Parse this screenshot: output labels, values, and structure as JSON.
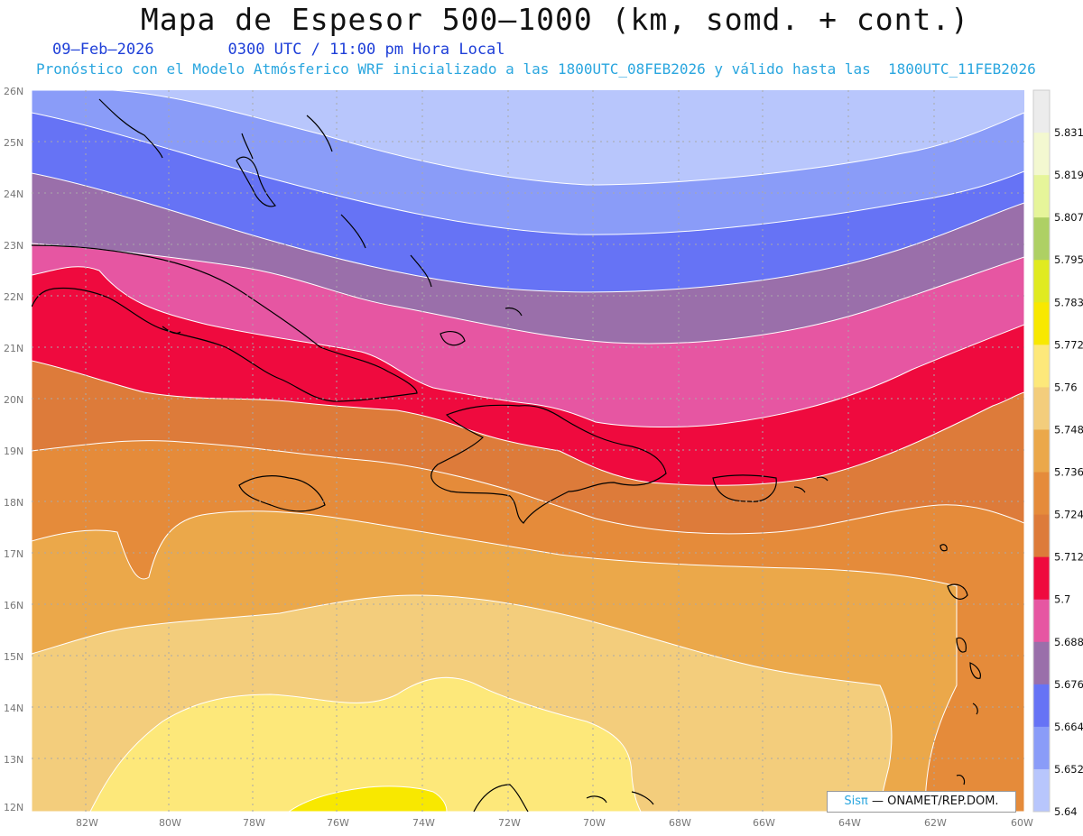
{
  "title": "Mapa de Espesor 500—1000 (km, somd. + cont.)",
  "date": "09—Feb—2026",
  "time": "0300 UTC / 11:00 pm Hora Local",
  "forecast": "Pronóstico con el Modelo Atmósferico WRF inicializado a las 1800UTC_08FEB2026 y válido hasta las  1800UTC_11FEB2026",
  "credit_brand": "Sisπ",
  "credit_text": "— ONAMET/REP.DOM.",
  "lat_labels": [
    "26N",
    "25N",
    "24N",
    "23N",
    "22N",
    "21N",
    "20N",
    "19N",
    "18N",
    "17N",
    "16N",
    "15N",
    "14N",
    "13N",
    "12N"
  ],
  "lon_labels": [
    "82W",
    "80W",
    "78W",
    "76W",
    "74W",
    "72W",
    "70W",
    "68W",
    "66W",
    "64W",
    "62W",
    "60W"
  ],
  "colorbar": {
    "labels": [
      "5.831",
      "5.819",
      "5.807",
      "5.795",
      "5.783",
      "5.772",
      "5.76",
      "5.748",
      "5.736",
      "5.724",
      "5.712",
      "5.7",
      "5.688",
      "5.676",
      "5.664",
      "5.652",
      "5.64"
    ],
    "colors": [
      "#ececec",
      "#f3f8d0",
      "#e6f59a",
      "#aed064",
      "#e0ea20",
      "#f8e800",
      "#fde87a",
      "#f3cd7c",
      "#eba84a",
      "#e58b3a",
      "#dd7b3a",
      "#ef0a3e",
      "#e656a2",
      "#9a6faa",
      "#6673f5",
      "#8a9cf8",
      "#b8c6fc"
    ]
  },
  "thickness_bands": [
    {
      "from": "5.652",
      "to": "5.664",
      "color": "#b8c6fc"
    },
    {
      "from": "5.664",
      "to": "5.676",
      "color": "#8a9cf8"
    },
    {
      "from": "5.676",
      "to": "5.688",
      "color": "#6673f5"
    },
    {
      "from": "5.688",
      "to": "5.7",
      "color": "#9a6faa"
    },
    {
      "from": "5.7",
      "to": "5.712",
      "color": "#e656a2"
    },
    {
      "from": "5.712",
      "to": "5.724",
      "color": "#ef0a3e"
    },
    {
      "from": "5.724",
      "to": "5.736",
      "color": "#dd7b3a"
    },
    {
      "from": "5.736",
      "to": "5.748",
      "color": "#e58b3a"
    },
    {
      "from": "5.748",
      "to": "5.76",
      "color": "#eba84a"
    },
    {
      "from": "5.76",
      "to": "5.772",
      "color": "#f3cd7c"
    },
    {
      "from": "5.772",
      "to": "5.783",
      "color": "#fde87a"
    },
    {
      "from": "5.783",
      "to": "5.795",
      "color": "#f8e800"
    }
  ]
}
